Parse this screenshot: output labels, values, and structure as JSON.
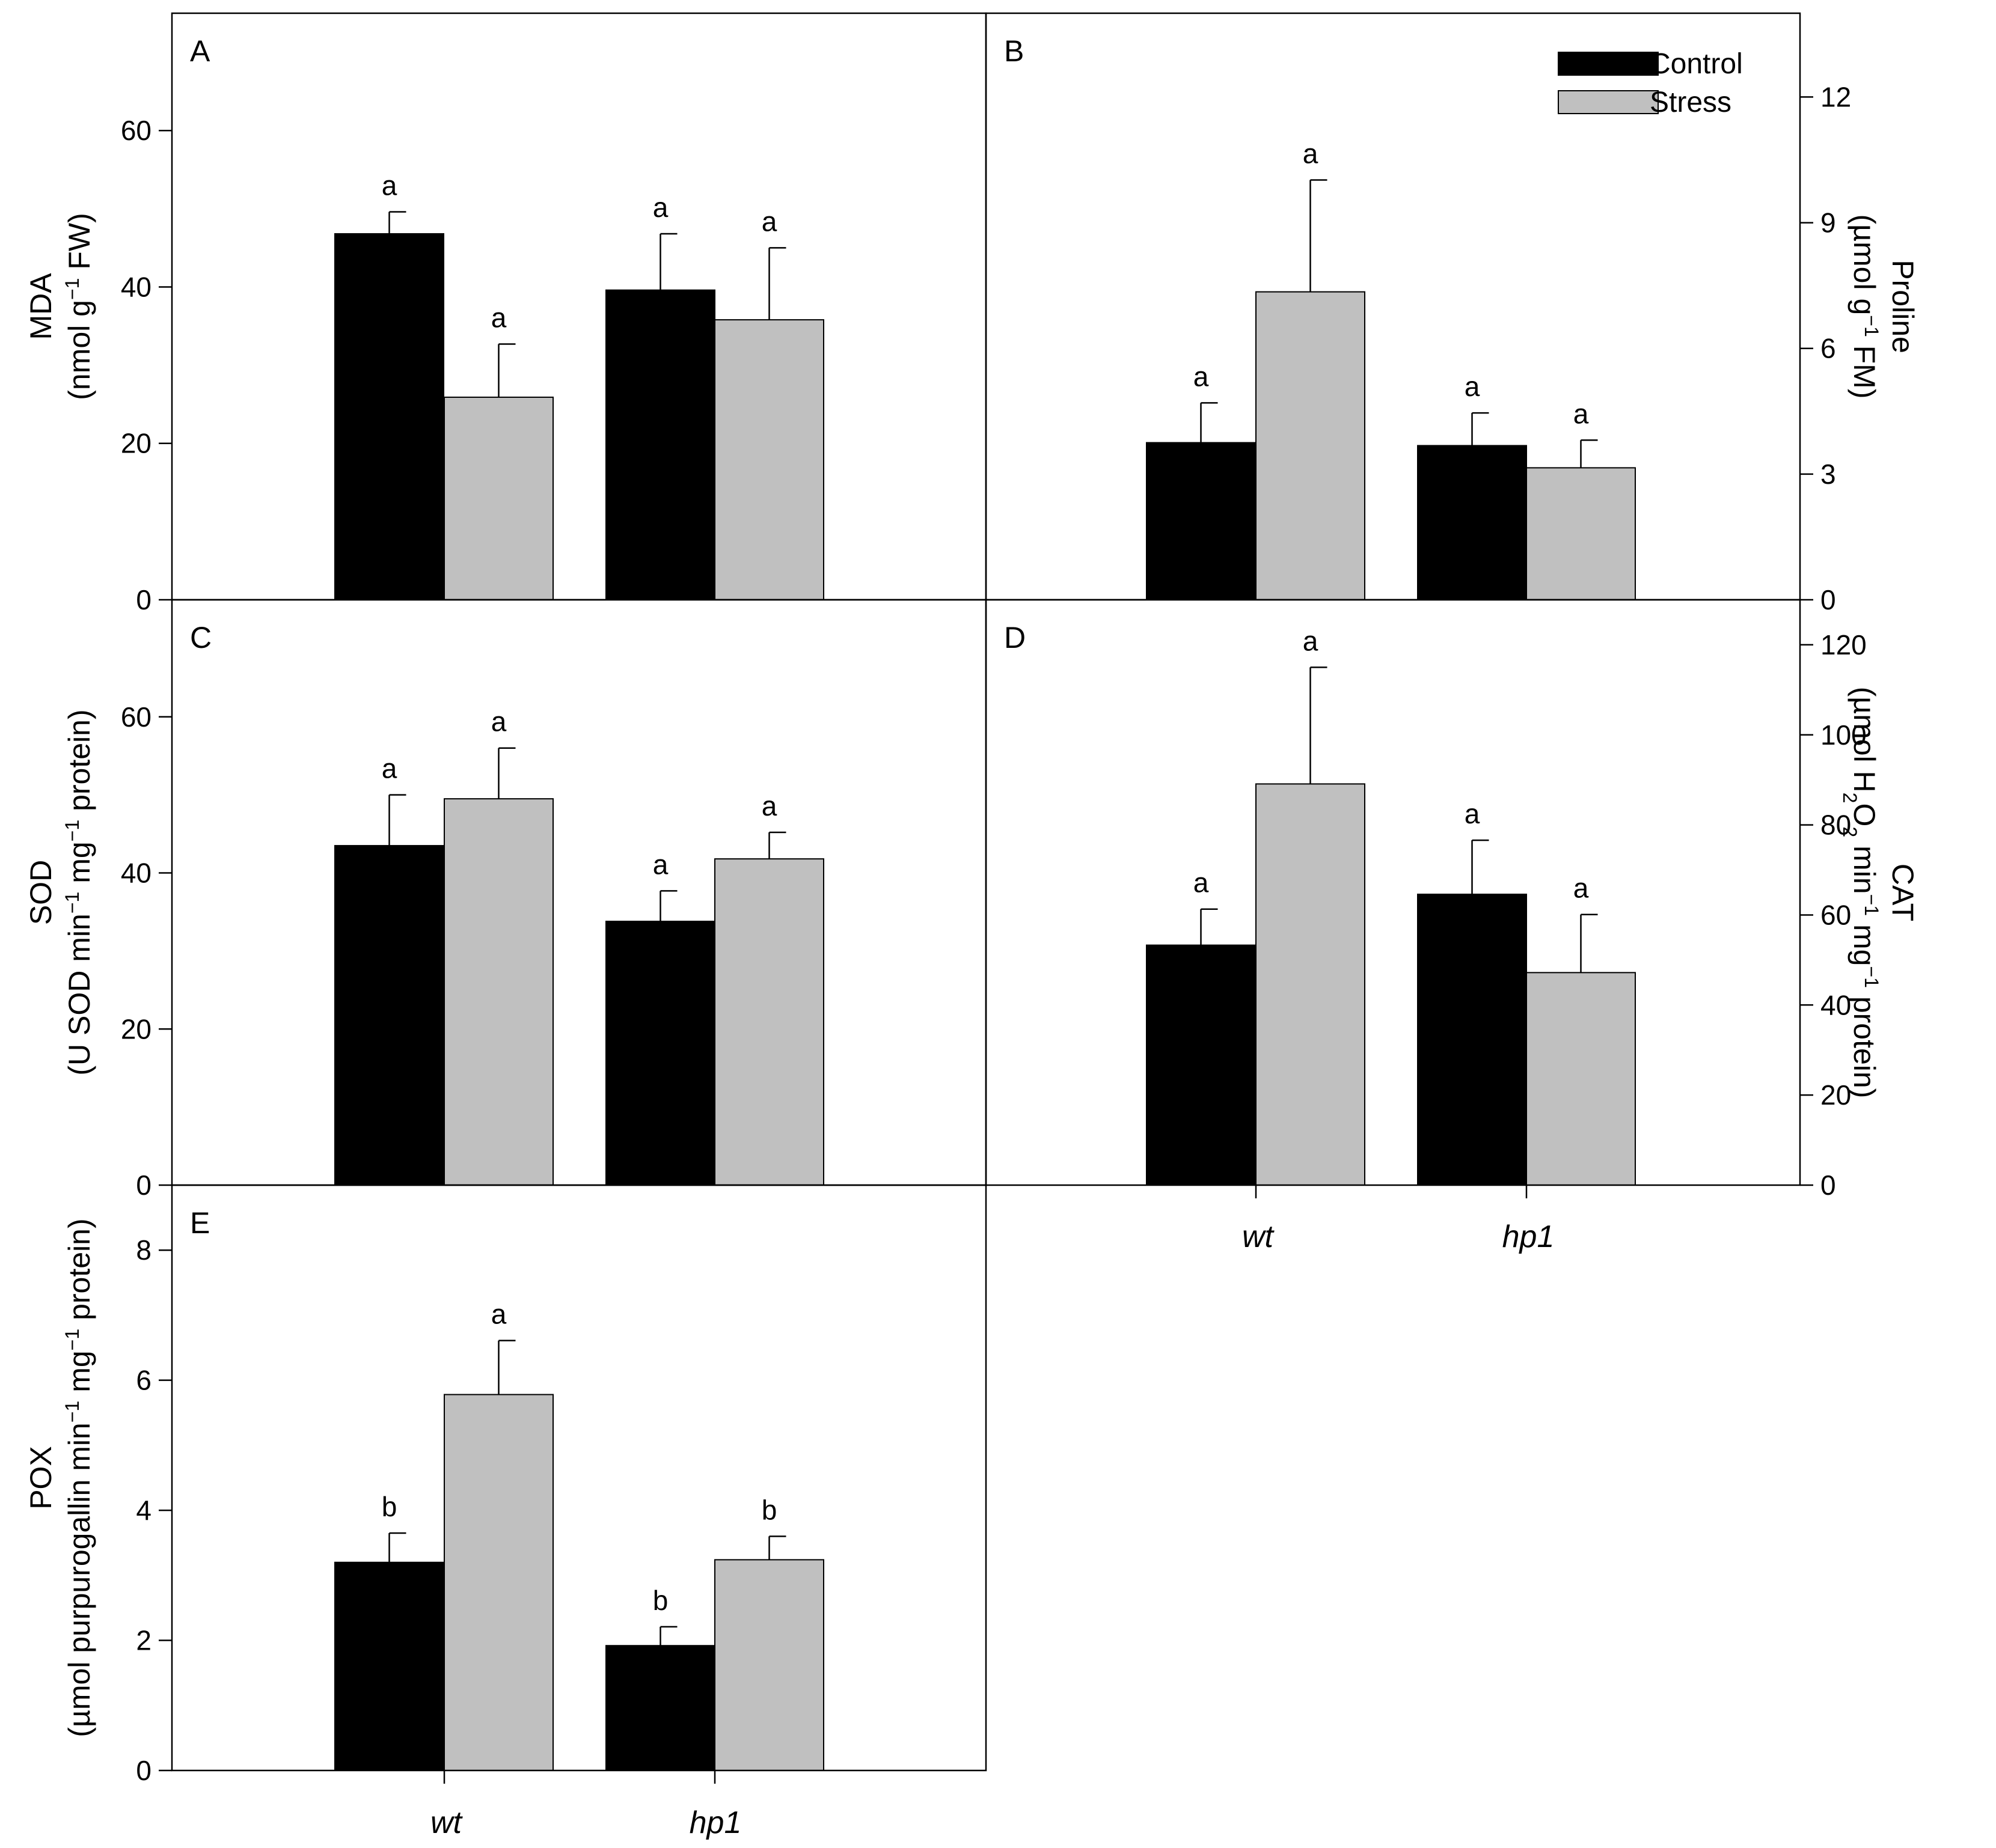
{
  "legend": {
    "control": {
      "label": "Control",
      "color": "#000000"
    },
    "stress": {
      "label": "Stress",
      "color": "#c0c0c0"
    }
  },
  "categories": [
    "wt",
    "hp1"
  ],
  "chart_data": [
    {
      "type": "bar",
      "panel": "A",
      "categories": [
        "wt",
        "hp1"
      ],
      "ylim": [
        0,
        75
      ],
      "yticks": [
        "0",
        "20",
        "40",
        "60"
      ],
      "ylabel_lines": [
        [
          {
            "t": "MDA"
          }
        ],
        [
          {
            "t": "(nmol g"
          },
          {
            "t": "−1",
            "sup": true
          },
          {
            "t": " FW)"
          }
        ]
      ],
      "series": [
        {
          "name": "Control",
          "values": [
            46.8,
            39.6
          ],
          "errors": [
            2.8,
            7.2
          ],
          "letters": [
            "a",
            "a"
          ]
        },
        {
          "name": "Stress",
          "values": [
            25.9,
            35.8
          ],
          "errors": [
            6.8,
            9.2
          ],
          "letters": [
            "a",
            "a"
          ]
        }
      ]
    },
    {
      "type": "bar",
      "panel": "B",
      "categories": [
        "wt",
        "hp1"
      ],
      "ylim": [
        0,
        14
      ],
      "yticks": [
        "0",
        "3",
        "6",
        "9",
        "12"
      ],
      "ylabel_lines": [
        [
          {
            "t": "Proline"
          }
        ],
        [
          {
            "t": "(µmol g"
          },
          {
            "t": "−1",
            "sup": true
          },
          {
            "t": " FM)"
          }
        ]
      ],
      "series": [
        {
          "name": "Control",
          "values": [
            3.75,
            3.68
          ],
          "errors": [
            0.95,
            0.78
          ],
          "letters": [
            "a",
            "a"
          ]
        },
        {
          "name": "Stress",
          "values": [
            7.35,
            3.15
          ],
          "errors": [
            2.67,
            0.66
          ],
          "letters": [
            "a",
            "a"
          ]
        }
      ]
    },
    {
      "type": "bar",
      "panel": "C",
      "categories": [
        "wt",
        "hp1"
      ],
      "ylim": [
        0,
        75
      ],
      "yticks": [
        "0",
        "20",
        "40",
        "60"
      ],
      "ylabel_lines": [
        [
          {
            "t": "SOD"
          }
        ],
        [
          {
            "t": "(U SOD min"
          },
          {
            "t": "−1",
            "sup": true
          },
          {
            "t": " mg"
          },
          {
            "t": "−1",
            "sup": true
          },
          {
            "t": " protein)"
          }
        ]
      ],
      "series": [
        {
          "name": "Control",
          "values": [
            43.5,
            33.8
          ],
          "errors": [
            6.5,
            3.9
          ],
          "letters": [
            "a",
            "a"
          ]
        },
        {
          "name": "Stress",
          "values": [
            49.5,
            41.8
          ],
          "errors": [
            6.5,
            3.4
          ],
          "letters": [
            "a",
            "a"
          ]
        }
      ]
    },
    {
      "type": "bar",
      "panel": "D",
      "categories": [
        "wt",
        "hp1"
      ],
      "ylim": [
        0,
        130
      ],
      "yticks": [
        "0",
        "20",
        "40",
        "60",
        "80",
        "100",
        "120"
      ],
      "ylabel_lines": [
        [
          {
            "t": "CAT"
          }
        ],
        [
          {
            "t": "(µmol H"
          },
          {
            "t": "2",
            "sub": true
          },
          {
            "t": "O"
          },
          {
            "t": "2",
            "sub": true
          },
          {
            "t": " min"
          },
          {
            "t": "−1",
            "sup": true
          },
          {
            "t": " mg"
          },
          {
            "t": "−1",
            "sup": true
          },
          {
            "t": " protein)"
          }
        ]
      ],
      "series": [
        {
          "name": "Control",
          "values": [
            53.3,
            64.6
          ],
          "errors": [
            8.0,
            12.0
          ],
          "letters": [
            "a",
            "a"
          ]
        },
        {
          "name": "Stress",
          "values": [
            89.1,
            47.2
          ],
          "errors": [
            25.9,
            12.9
          ],
          "letters": [
            "a",
            "a"
          ]
        }
      ]
    },
    {
      "type": "bar",
      "panel": "E",
      "categories": [
        "wt",
        "hp1"
      ],
      "ylim": [
        0,
        9
      ],
      "yticks": [
        "0",
        "2",
        "4",
        "6",
        "8"
      ],
      "ylabel_lines": [
        [
          {
            "t": "POX"
          }
        ],
        [
          {
            "t": "(µmol purpurogallin min"
          },
          {
            "t": "−1",
            "sup": true
          },
          {
            "t": " mg"
          },
          {
            "t": "−1",
            "sup": true
          },
          {
            "t": " protein)"
          }
        ]
      ],
      "series": [
        {
          "name": "Control",
          "values": [
            3.2,
            1.92
          ],
          "errors": [
            0.45,
            0.29
          ],
          "letters": [
            "b",
            "b"
          ]
        },
        {
          "name": "Stress",
          "values": [
            5.78,
            3.24
          ],
          "errors": [
            0.83,
            0.36
          ],
          "letters": [
            "a",
            "b"
          ]
        }
      ]
    }
  ]
}
